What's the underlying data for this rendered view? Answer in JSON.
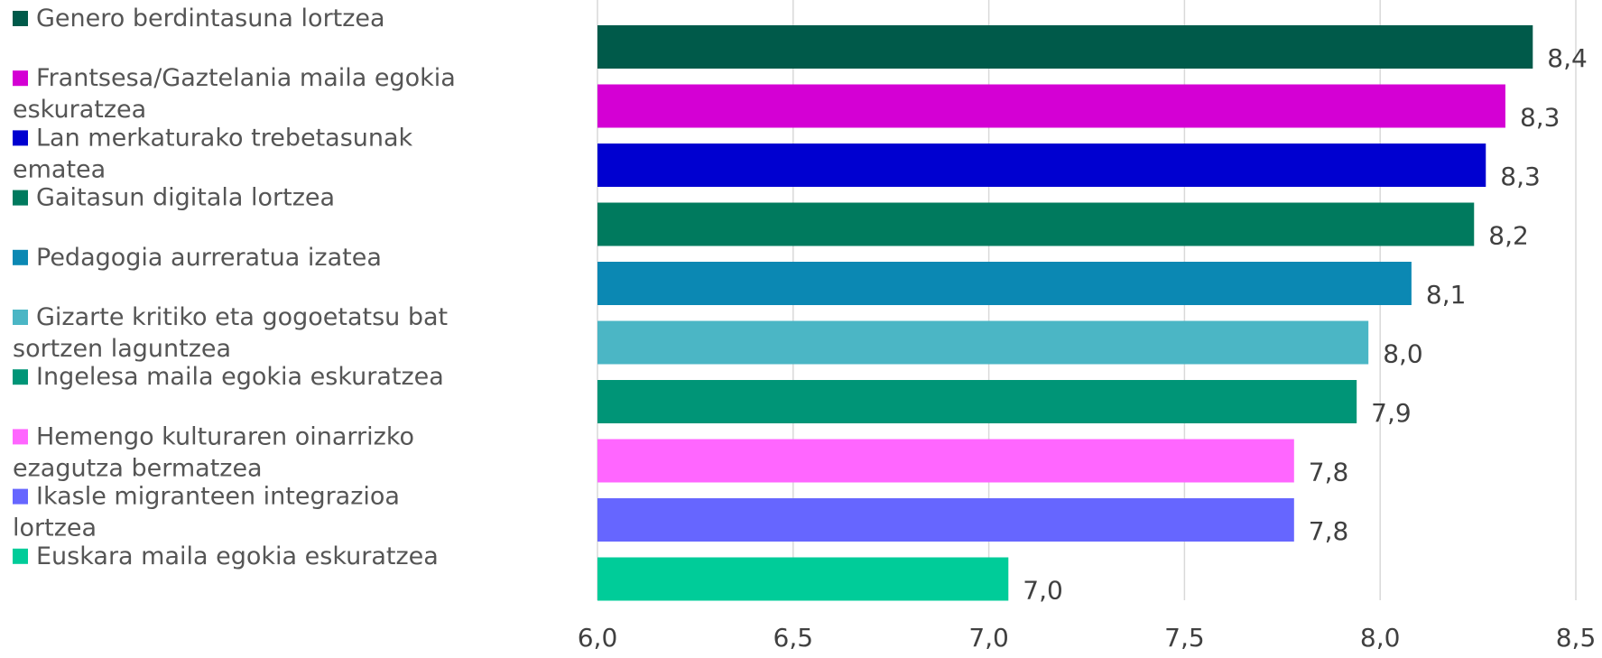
{
  "chart_data": {
    "type": "bar",
    "orientation": "horizontal",
    "title": "",
    "xlabel": "",
    "ylabel": "",
    "xlim": [
      6.0,
      8.5
    ],
    "ticks": [
      "6,0",
      "6,5",
      "7,0",
      "7,5",
      "8,0",
      "8,5"
    ],
    "tick_values": [
      6.0,
      6.5,
      7.0,
      7.5,
      8.0,
      8.5
    ],
    "grid": true,
    "legend": "left",
    "bars": [
      {
        "label": "Genero berdintasuna lortzea",
        "value": 8.39,
        "display": "8,4",
        "color": "#005a4a"
      },
      {
        "label": "Frantsesa/Gaztelania maila egokia eskuratzea",
        "value": 8.32,
        "display": "8,3",
        "color": "#d400d4"
      },
      {
        "label": "Lan merkaturako trebetasunak ematea",
        "value": 8.27,
        "display": "8,3",
        "color": "#0000d0"
      },
      {
        "label": "Gaitasun digitala lortzea",
        "value": 8.24,
        "display": "8,2",
        "color": "#007a5e"
      },
      {
        "label": "Pedagogia aurreratua izatea",
        "value": 8.08,
        "display": "8,1",
        "color": "#0b88b3"
      },
      {
        "label": "Gizarte kritiko eta gogoetatsu bat sortzen laguntzea",
        "value": 7.97,
        "display": "8,0",
        "color": "#4bb6c5"
      },
      {
        "label": "Ingelesa maila egokia eskuratzea",
        "value": 7.94,
        "display": "7,9",
        "color": "#009577"
      },
      {
        "label": "Hemengo kulturaren oinarrizko ezagutza bermatzea",
        "value": 7.78,
        "display": "7,8",
        "color": "#ff66ff"
      },
      {
        "label": "Ikasle migranteen integrazioa lortzea",
        "value": 7.78,
        "display": "7,8",
        "color": "#6666ff"
      },
      {
        "label": "Euskara maila egokia eskuratzea",
        "value": 7.05,
        "display": "7,0",
        "color": "#00cc99"
      }
    ]
  }
}
